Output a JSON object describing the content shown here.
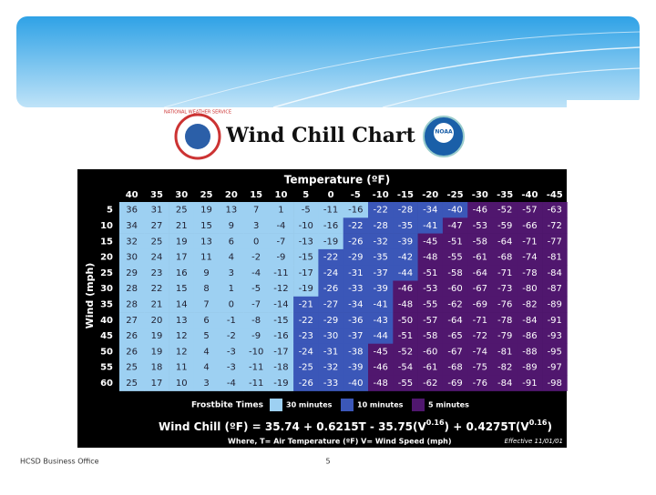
{
  "header": {
    "title": "Wind Chill Chart",
    "logo_left": "NATIONAL WEATHER SERVICE",
    "logo_right": "NOAA"
  },
  "table": {
    "title": "Temperature (ºF)",
    "row_label": "Wind (mph)",
    "columns": [
      40,
      35,
      30,
      25,
      20,
      15,
      10,
      5,
      0,
      -5,
      -10,
      -15,
      -20,
      -25,
      -30,
      -35,
      -40,
      -45
    ],
    "rows": [
      {
        "wind": 5,
        "values": [
          36,
          31,
          25,
          19,
          13,
          7,
          1,
          -5,
          -11,
          -16,
          -22,
          -28,
          -34,
          -40,
          -46,
          -52,
          -57,
          -63
        ]
      },
      {
        "wind": 10,
        "values": [
          34,
          27,
          21,
          15,
          9,
          3,
          -4,
          -10,
          -16,
          -22,
          -28,
          -35,
          -41,
          -47,
          -53,
          -59,
          -66,
          -72
        ]
      },
      {
        "wind": 15,
        "values": [
          32,
          25,
          19,
          13,
          6,
          0,
          -7,
          -13,
          -19,
          -26,
          -32,
          -39,
          -45,
          -51,
          -58,
          -64,
          -71,
          -77
        ]
      },
      {
        "wind": 20,
        "values": [
          30,
          24,
          17,
          11,
          4,
          -2,
          -9,
          -15,
          -22,
          -29,
          -35,
          -42,
          -48,
          -55,
          -61,
          -68,
          -74,
          -81
        ]
      },
      {
        "wind": 25,
        "values": [
          29,
          23,
          16,
          9,
          3,
          -4,
          -11,
          -17,
          -24,
          -31,
          -37,
          -44,
          -51,
          -58,
          -64,
          -71,
          -78,
          -84
        ]
      },
      {
        "wind": 30,
        "values": [
          28,
          22,
          15,
          8,
          1,
          -5,
          -12,
          -19,
          -26,
          -33,
          -39,
          -46,
          -53,
          -60,
          -67,
          -73,
          -80,
          -87
        ]
      },
      {
        "wind": 35,
        "values": [
          28,
          21,
          14,
          7,
          0,
          -7,
          -14,
          -21,
          -27,
          -34,
          -41,
          -48,
          -55,
          -62,
          -69,
          -76,
          -82,
          -89
        ]
      },
      {
        "wind": 40,
        "values": [
          27,
          20,
          13,
          6,
          -1,
          -8,
          -15,
          -22,
          -29,
          -36,
          -43,
          -50,
          -57,
          -64,
          -71,
          -78,
          -84,
          -91
        ]
      },
      {
        "wind": 45,
        "values": [
          26,
          19,
          12,
          5,
          -2,
          -9,
          -16,
          -23,
          -30,
          -37,
          -44,
          -51,
          -58,
          -65,
          -72,
          -79,
          -86,
          -93
        ]
      },
      {
        "wind": 50,
        "values": [
          26,
          19,
          12,
          4,
          -3,
          -10,
          -17,
          -24,
          -31,
          -38,
          -45,
          -52,
          -60,
          -67,
          -74,
          -81,
          -88,
          -95
        ]
      },
      {
        "wind": 55,
        "values": [
          25,
          18,
          11,
          4,
          -3,
          -11,
          -18,
          -25,
          -32,
          -39,
          -46,
          -54,
          -61,
          -68,
          -75,
          -82,
          -89,
          -97
        ]
      },
      {
        "wind": 60,
        "values": [
          25,
          17,
          10,
          3,
          -4,
          -11,
          -19,
          -26,
          -33,
          -40,
          -48,
          -55,
          -62,
          -69,
          -76,
          -84,
          -91,
          -98
        ]
      }
    ]
  },
  "legend": {
    "label": "Frostbite Times",
    "items": [
      "30 minutes",
      "10 minutes",
      "5 minutes"
    ]
  },
  "formula": [
    "Wind Chill (ºF) = 35.74 + 0.6215T - 35.75(V",
    "0.16",
    ") + 0.4275T(V",
    "0.16",
    ")"
  ],
  "note": "Where, T= Air Temperature (ºF)   V= Wind Speed (mph)",
  "effective": "Effective 11/01/01",
  "footer": {
    "left": "HCSD Business Office",
    "page": "5"
  }
}
